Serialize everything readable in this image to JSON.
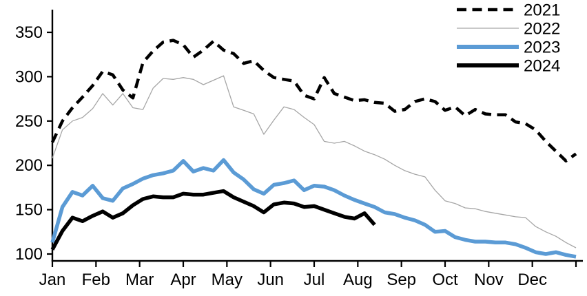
{
  "chart_data": {
    "type": "line",
    "title": "",
    "x_axis": {
      "tick_labels": [
        "Jan",
        "Feb",
        "Mar",
        "Apr",
        "May",
        "Jun",
        "Jul",
        "Aug",
        "Sep",
        "Oct",
        "Nov",
        "Dec"
      ],
      "points_per_year": 53,
      "unit": "weekly"
    },
    "y_axis": {
      "min": 100,
      "max": 350,
      "tick_step": 50,
      "tick_labels": [
        "100",
        "150",
        "200",
        "250",
        "300",
        "350"
      ]
    },
    "legend": {
      "position": "top-right",
      "entries": [
        "2021",
        "2022",
        "2023",
        "2024"
      ]
    },
    "colors": {
      "black": "#000000",
      "gray": "#a6a6a6",
      "blue": "#5b9bd5"
    },
    "series": [
      {
        "name": "2022",
        "style": "solid",
        "color": "#a6a6a6",
        "width": 1.3,
        "values": [
          208,
          240,
          250,
          254,
          264,
          281,
          268,
          281,
          265,
          263,
          287,
          298,
          297,
          299,
          297,
          291,
          296,
          301,
          266,
          262,
          258,
          235,
          251,
          266,
          263,
          254,
          246,
          227,
          225,
          227,
          222,
          216,
          212,
          207,
          200,
          194,
          190,
          187,
          172,
          160,
          157,
          152,
          151,
          148,
          146,
          144,
          142,
          141,
          131,
          125,
          120,
          113,
          107
        ]
      },
      {
        "name": "2021",
        "style": "dashed",
        "color": "#000000",
        "width": 4.5,
        "values": [
          226,
          250,
          265,
          277,
          290,
          306,
          302,
          285,
          276,
          316,
          329,
          339,
          341,
          336,
          322,
          330,
          340,
          330,
          326,
          315,
          318,
          307,
          299,
          297,
          295,
          279,
          275,
          299,
          281,
          277,
          273,
          274,
          271,
          270,
          261,
          263,
          272,
          275,
          272,
          262,
          266,
          256,
          263,
          258,
          257,
          257,
          249,
          247,
          240,
          227,
          216,
          205,
          213
        ]
      },
      {
        "name": "2023",
        "style": "solid",
        "color": "#5b9bd5",
        "width": 5.5,
        "values": [
          113,
          153,
          170,
          166,
          177,
          163,
          160,
          174,
          179,
          185,
          189,
          191,
          194,
          205,
          193,
          197,
          194,
          206,
          192,
          184,
          173,
          168,
          178,
          180,
          183,
          172,
          177,
          176,
          172,
          166,
          161,
          157,
          153,
          147,
          145,
          141,
          138,
          133,
          125,
          126,
          119,
          116,
          114,
          114,
          113,
          113,
          111,
          107,
          102,
          100,
          102,
          99,
          97
        ]
      },
      {
        "name": "2024",
        "style": "solid",
        "color": "#000000",
        "width": 5.5,
        "values": [
          105,
          126,
          141,
          137,
          143,
          148,
          141,
          146,
          155,
          162,
          165,
          164,
          164,
          168,
          167,
          167,
          169,
          171,
          164,
          159,
          154,
          147,
          156,
          158,
          157,
          153,
          154,
          150,
          146,
          142,
          140,
          146,
          133
        ]
      }
    ],
    "legend_order": [
      "2021",
      "2022",
      "2023",
      "2024"
    ]
  }
}
